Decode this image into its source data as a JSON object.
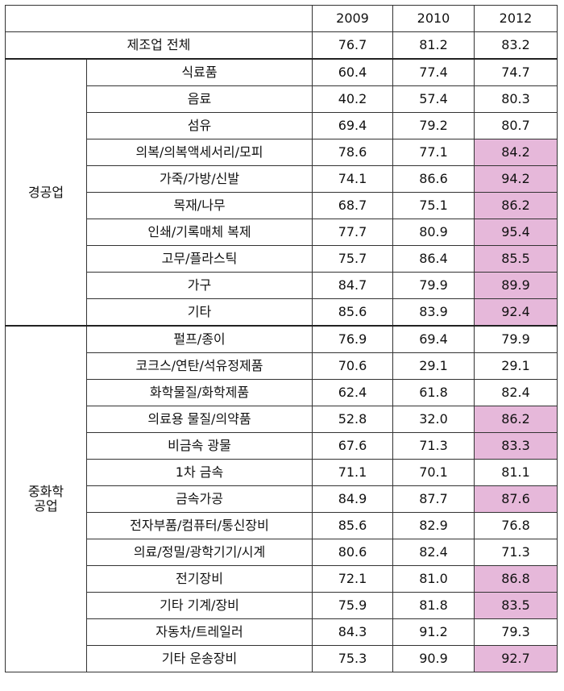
{
  "table": {
    "years": [
      "2009",
      "2010",
      "2012"
    ],
    "total": {
      "label": "제조업 전체",
      "values": [
        "76.7",
        "81.2",
        "83.2"
      ],
      "highlight": [
        false,
        false,
        false
      ]
    },
    "groups": [
      {
        "label": "경공업",
        "rows": [
          {
            "label": "식료품",
            "values": [
              "60.4",
              "77.4",
              "74.7"
            ],
            "highlight": [
              false,
              false,
              false
            ]
          },
          {
            "label": "음료",
            "values": [
              "40.2",
              "57.4",
              "80.3"
            ],
            "highlight": [
              false,
              false,
              false
            ]
          },
          {
            "label": "섬유",
            "values": [
              "69.4",
              "79.2",
              "80.7"
            ],
            "highlight": [
              false,
              false,
              false
            ]
          },
          {
            "label": "의복/의복액세서리/모피",
            "values": [
              "78.6",
              "77.1",
              "84.2"
            ],
            "highlight": [
              false,
              false,
              true
            ]
          },
          {
            "label": "가죽/가방/신발",
            "values": [
              "74.1",
              "86.6",
              "94.2"
            ],
            "highlight": [
              false,
              false,
              true
            ]
          },
          {
            "label": "목재/나무",
            "values": [
              "68.7",
              "75.1",
              "86.2"
            ],
            "highlight": [
              false,
              false,
              true
            ]
          },
          {
            "label": "인쇄/기록매체 복제",
            "values": [
              "77.7",
              "80.9",
              "95.4"
            ],
            "highlight": [
              false,
              false,
              true
            ]
          },
          {
            "label": "고무/플라스틱",
            "values": [
              "75.7",
              "86.4",
              "85.5"
            ],
            "highlight": [
              false,
              false,
              true
            ]
          },
          {
            "label": "가구",
            "values": [
              "84.7",
              "79.9",
              "89.9"
            ],
            "highlight": [
              false,
              false,
              true
            ]
          },
          {
            "label": "기타",
            "values": [
              "85.6",
              "83.9",
              "92.4"
            ],
            "highlight": [
              false,
              false,
              true
            ]
          }
        ]
      },
      {
        "label": "중화학\n공업",
        "rows": [
          {
            "label": "펄프/종이",
            "values": [
              "76.9",
              "69.4",
              "79.9"
            ],
            "highlight": [
              false,
              false,
              false
            ]
          },
          {
            "label": "코크스/연탄/석유정제품",
            "values": [
              "70.6",
              "29.1",
              "29.1"
            ],
            "highlight": [
              false,
              false,
              false
            ]
          },
          {
            "label": "화학물질/화학제품",
            "values": [
              "62.4",
              "61.8",
              "82.4"
            ],
            "highlight": [
              false,
              false,
              false
            ]
          },
          {
            "label": "의료용 물질/의약품",
            "values": [
              "52.8",
              "32.0",
              "86.2"
            ],
            "highlight": [
              false,
              false,
              true
            ]
          },
          {
            "label": "비금속 광물",
            "values": [
              "67.6",
              "71.3",
              "83.3"
            ],
            "highlight": [
              false,
              false,
              true
            ]
          },
          {
            "label": "1차 금속",
            "values": [
              "71.1",
              "70.1",
              "81.1"
            ],
            "highlight": [
              false,
              false,
              false
            ]
          },
          {
            "label": "금속가공",
            "values": [
              "84.9",
              "87.7",
              "87.6"
            ],
            "highlight": [
              false,
              false,
              true
            ]
          },
          {
            "label": "전자부품/컴퓨터/통신장비",
            "values": [
              "85.6",
              "82.9",
              "76.8"
            ],
            "highlight": [
              false,
              false,
              false
            ]
          },
          {
            "label": "의료/정밀/광학기기/시계",
            "values": [
              "80.6",
              "82.4",
              "71.3"
            ],
            "highlight": [
              false,
              false,
              false
            ]
          },
          {
            "label": "전기장비",
            "values": [
              "72.1",
              "81.0",
              "86.8"
            ],
            "highlight": [
              false,
              false,
              true
            ]
          },
          {
            "label": "기타 기계/장비",
            "values": [
              "75.9",
              "81.8",
              "83.5"
            ],
            "highlight": [
              false,
              false,
              true
            ]
          },
          {
            "label": "자동차/트레일러",
            "values": [
              "84.3",
              "91.2",
              "79.3"
            ],
            "highlight": [
              false,
              false,
              false
            ]
          },
          {
            "label": "기타 운송장비",
            "values": [
              "75.3",
              "90.9",
              "92.7"
            ],
            "highlight": [
              false,
              false,
              true
            ]
          }
        ]
      }
    ],
    "colors": {
      "highlight": "#e6b8da",
      "border": "#333333"
    }
  }
}
